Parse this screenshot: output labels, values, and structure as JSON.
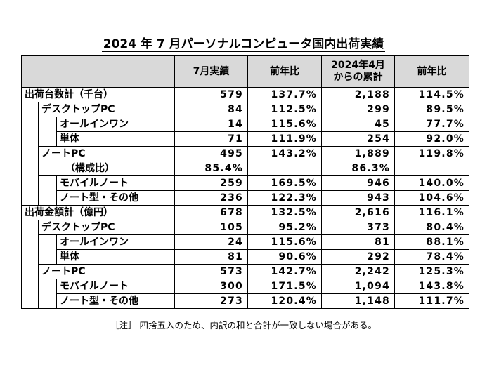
{
  "title": "2024 年 7 月パーソナルコンピュータ国内出荷実績",
  "header": {
    "col1": "7月実績",
    "col2": "前年比",
    "col3_line1": "2024年4月",
    "col3_line2": "からの累計",
    "col4": "前年比"
  },
  "rows": [
    {
      "label": "出荷台数計（千台）",
      "v1": "579",
      "v2": "137.7%",
      "v3": "2,188",
      "v4": "114.5%"
    },
    {
      "label": "デスクトップPC",
      "v1": "84",
      "v2": "112.5%",
      "v3": "299",
      "v4": "89.5%"
    },
    {
      "label": "オールインワン",
      "v1": "14",
      "v2": "115.6%",
      "v3": "45",
      "v4": "77.7%"
    },
    {
      "label": "単体",
      "v1": "71",
      "v2": "111.9%",
      "v3": "254",
      "v4": "92.0%"
    },
    {
      "label": "ノートPC",
      "v1": "495",
      "v2": "143.2%",
      "v3": "1,889",
      "v4": "119.8%"
    },
    {
      "label": "（構成比）",
      "v1": "85.4%",
      "v2": "",
      "v3": "86.3%",
      "v4": ""
    },
    {
      "label": "モバイルノート",
      "v1": "259",
      "v2": "169.5%",
      "v3": "946",
      "v4": "140.0%"
    },
    {
      "label": "ノート型・その他",
      "v1": "236",
      "v2": "122.3%",
      "v3": "943",
      "v4": "104.6%"
    },
    {
      "label": "出荷金額計（億円）",
      "v1": "678",
      "v2": "132.5%",
      "v3": "2,616",
      "v4": "116.1%"
    },
    {
      "label": "デスクトップPC",
      "v1": "105",
      "v2": "95.2%",
      "v3": "373",
      "v4": "80.4%"
    },
    {
      "label": "オールインワン",
      "v1": "24",
      "v2": "115.6%",
      "v3": "81",
      "v4": "88.1%"
    },
    {
      "label": "単体",
      "v1": "81",
      "v2": "90.6%",
      "v3": "292",
      "v4": "78.4%"
    },
    {
      "label": "ノートPC",
      "v1": "573",
      "v2": "142.7%",
      "v3": "2,242",
      "v4": "125.3%"
    },
    {
      "label": "モバイルノート",
      "v1": "300",
      "v2": "171.5%",
      "v3": "1,094",
      "v4": "143.8%"
    },
    {
      "label": "ノート型・その他",
      "v1": "273",
      "v2": "120.4%",
      "v3": "1,148",
      "v4": "111.7%"
    }
  ],
  "note": "［注］ 四捨五入のため、内訳の和と合計が一致しない場合がある。"
}
